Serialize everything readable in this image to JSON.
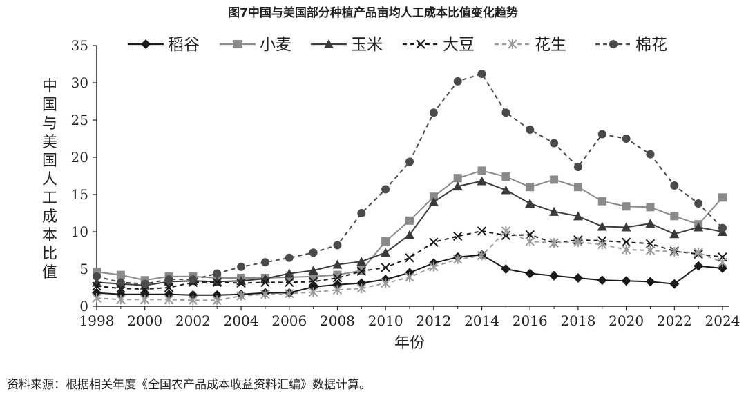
{
  "title": "图7中国与美国部分种植产品亩均人工成本比值变化趋势",
  "source": "资料来源：根据相关年度《全国农产品成本收益资料汇编》数据计算。",
  "chart_data": {
    "type": "line",
    "ylabel": "中国与美国人工成本比值",
    "xlabel": "年份",
    "ylim": [
      0,
      35
    ],
    "yticks": [
      0,
      5,
      10,
      15,
      20,
      25,
      30,
      35
    ],
    "xlim": [
      1998,
      2024
    ],
    "xticks": [
      1998,
      2000,
      2002,
      2004,
      2006,
      2008,
      2010,
      2012,
      2014,
      2016,
      2018,
      2020,
      2022,
      2024
    ],
    "grid": false,
    "legend_position": "top",
    "x": [
      1998,
      1999,
      2000,
      2001,
      2002,
      2003,
      2004,
      2005,
      2006,
      2007,
      2008,
      2009,
      2010,
      2011,
      2012,
      2013,
      2014,
      2015,
      2016,
      2017,
      2018,
      2019,
      2020,
      2021,
      2022,
      2023,
      2024
    ],
    "series": [
      {
        "name": "稻谷",
        "marker": "diamond",
        "dash": "solid",
        "color": "#1a1a1a",
        "values": [
          1.8,
          1.6,
          1.6,
          1.6,
          1.5,
          1.5,
          1.6,
          1.8,
          1.8,
          2.6,
          2.9,
          3.1,
          3.6,
          4.5,
          5.8,
          6.6,
          6.9,
          5.0,
          4.4,
          4.1,
          3.8,
          3.5,
          3.4,
          3.3,
          3.0,
          5.4,
          5.1
        ]
      },
      {
        "name": "小麦",
        "marker": "square",
        "dash": "solid",
        "color": "#8a8a8a",
        "values": [
          4.6,
          4.2,
          3.5,
          4.0,
          4.0,
          3.8,
          3.8,
          3.8,
          3.9,
          4.0,
          4.2,
          4.8,
          8.7,
          11.5,
          14.7,
          17.2,
          18.2,
          17.4,
          16.0,
          17.0,
          16.0,
          14.1,
          13.4,
          13.3,
          12.1,
          11.0,
          14.6
        ]
      },
      {
        "name": "玉米",
        "marker": "triangle",
        "dash": "solid",
        "color": "#3a3a3a",
        "values": [
          3.2,
          3.0,
          2.8,
          3.3,
          3.4,
          3.3,
          3.4,
          3.7,
          4.4,
          4.8,
          5.6,
          6.0,
          7.2,
          9.6,
          14.0,
          16.1,
          16.8,
          15.6,
          13.8,
          12.7,
          12.1,
          10.7,
          10.6,
          11.1,
          9.7,
          10.6,
          10.0
        ]
      },
      {
        "name": "大豆",
        "marker": "x",
        "dash": "dash",
        "color": "#1a1a1a",
        "values": [
          2.7,
          2.4,
          2.3,
          2.5,
          3.2,
          3.2,
          3.1,
          3.2,
          3.2,
          3.3,
          3.8,
          4.7,
          5.2,
          6.5,
          8.6,
          9.4,
          10.1,
          9.5,
          9.6,
          8.5,
          8.9,
          8.8,
          8.6,
          8.4,
          7.4,
          7.0,
          6.6
        ]
      },
      {
        "name": "花生",
        "marker": "asterisk",
        "dash": "dash",
        "color": "#9a9a9a",
        "values": [
          1.1,
          0.9,
          0.9,
          0.9,
          0.8,
          0.8,
          1.4,
          1.6,
          1.7,
          1.9,
          2.2,
          2.4,
          3.1,
          3.9,
          5.3,
          6.3,
          6.8,
          10.1,
          8.7,
          8.5,
          8.6,
          8.3,
          7.6,
          7.5,
          7.3,
          7.2,
          5.9
        ]
      },
      {
        "name": "棉花",
        "marker": "circle",
        "dash": "dash",
        "color": "#4a4a4a",
        "values": [
          4.0,
          3.2,
          3.0,
          3.6,
          3.6,
          4.4,
          5.3,
          5.9,
          6.5,
          7.2,
          8.2,
          12.5,
          15.7,
          19.4,
          26.0,
          30.2,
          31.2,
          26.0,
          23.7,
          21.9,
          18.7,
          23.1,
          22.5,
          20.4,
          16.2,
          13.8,
          10.5
        ]
      }
    ]
  }
}
